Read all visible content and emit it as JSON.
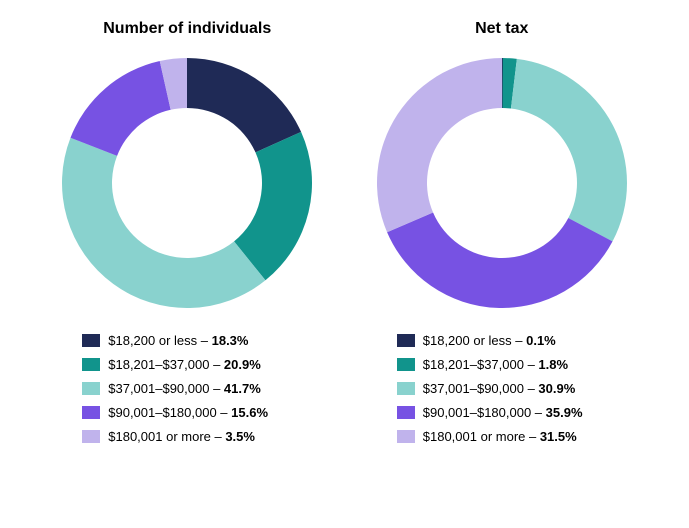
{
  "colors": {
    "c0": "#1f2a56",
    "c1": "#11948c",
    "c2": "#89d2ce",
    "c3": "#7752e3",
    "c4": "#c0b3ec"
  },
  "background_color": "#ffffff",
  "donut": {
    "outer_radius": 120,
    "inner_radius": 72,
    "start_angle_deg": 0,
    "direction": "clockwise"
  },
  "title_fontsize": 16,
  "legend_fontsize": 13,
  "categories": [
    "$18,200 or less",
    "$18,201–$37,000",
    "$37,001–$90,000",
    "$90,001–$180,000",
    "$180,001 or more"
  ],
  "charts": [
    {
      "title": "Number of individuals",
      "values": [
        18.3,
        20.9,
        41.7,
        15.6,
        3.5
      ],
      "value_labels": [
        "18.3%",
        "20.9%",
        "41.7%",
        "15.6%",
        "3.5%"
      ],
      "slice_colors": [
        "#1f2a56",
        "#11948c",
        "#89d2ce",
        "#7752e3",
        "#c0b3ec"
      ]
    },
    {
      "title": "Net tax",
      "values": [
        0.1,
        1.8,
        30.9,
        35.9,
        31.5
      ],
      "value_labels": [
        "0.1%",
        "1.8%",
        "30.9%",
        "35.9%",
        "31.5%"
      ],
      "slice_colors": [
        "#1f2a56",
        "#11948c",
        "#89d2ce",
        "#7752e3",
        "#c0b3ec"
      ]
    }
  ]
}
